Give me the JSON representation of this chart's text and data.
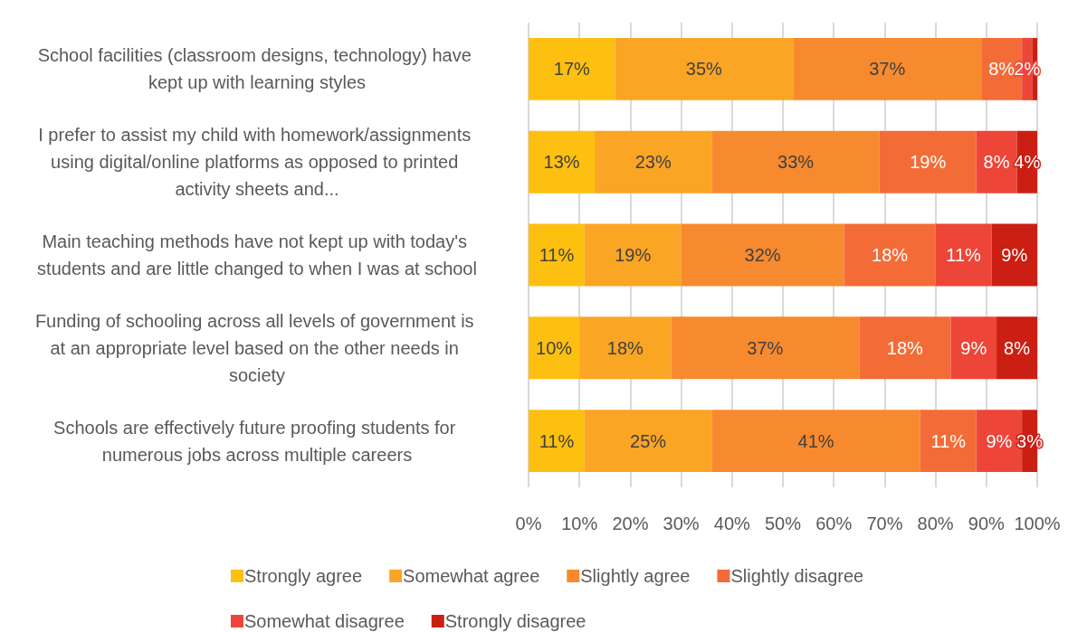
{
  "chart_data": {
    "type": "bar",
    "orientation": "horizontal",
    "stacked": true,
    "categories": [
      "School facilities (classroom designs, technology) have kept up with learning styles",
      "I prefer to assist my child with homework/assignments using digital/online platforms as opposed to printed activity sheets and...",
      "Main teaching methods have not kept up with today's students and are little changed to when I was at school",
      "Funding of schooling across all levels of government is at an appropriate level based on the other needs in society",
      "Schools are effectively future proofing students for numerous jobs across multiple careers"
    ],
    "series": [
      {
        "name": "Strongly agree",
        "color": "#fdc010",
        "values": [
          17,
          13,
          11,
          10,
          11
        ],
        "value_labels": [
          "17%",
          "13%",
          "11%",
          "10%",
          "11%"
        ]
      },
      {
        "name": "Somewhat agree",
        "color": "#fba524",
        "values": [
          35,
          23,
          19,
          18,
          25
        ],
        "value_labels": [
          "35%",
          "23%",
          "19%",
          "18%",
          "25%"
        ]
      },
      {
        "name": "Slightly agree",
        "color": "#f78a2e",
        "values": [
          37,
          33,
          32,
          37,
          41
        ],
        "value_labels": [
          "37%",
          "33%",
          "32%",
          "37%",
          "41%"
        ]
      },
      {
        "name": "Slightly disagree",
        "color": "#f36c37",
        "values": [
          8,
          19,
          18,
          18,
          11
        ],
        "value_labels": [
          "8%",
          "19%",
          "18%",
          "18%",
          "11%"
        ]
      },
      {
        "name": "Somewhat disagree",
        "color": "#ee4539",
        "values": [
          2,
          8,
          11,
          9,
          9
        ],
        "value_labels": [
          "2%",
          "8%",
          "11%",
          "9%",
          "9%"
        ]
      },
      {
        "name": "Strongly disagree",
        "color": "#cb1f13",
        "values": [
          1,
          4,
          9,
          8,
          3
        ],
        "value_labels": [
          null,
          "4%",
          "9%",
          "8%",
          "3%"
        ]
      }
    ],
    "xlim": [
      0,
      100
    ],
    "xticks": [
      {
        "value": 0,
        "label": "0%"
      },
      {
        "value": 10,
        "label": "10%"
      },
      {
        "value": 20,
        "label": "20%"
      },
      {
        "value": 30,
        "label": "30%"
      },
      {
        "value": 40,
        "label": "40%"
      },
      {
        "value": 50,
        "label": "50%"
      },
      {
        "value": 60,
        "label": "60%"
      },
      {
        "value": 70,
        "label": "70%"
      },
      {
        "value": 80,
        "label": "80%"
      },
      {
        "value": 90,
        "label": "90%"
      },
      {
        "value": 100,
        "label": "100%"
      }
    ],
    "grid": "x",
    "legend": "bottom"
  }
}
